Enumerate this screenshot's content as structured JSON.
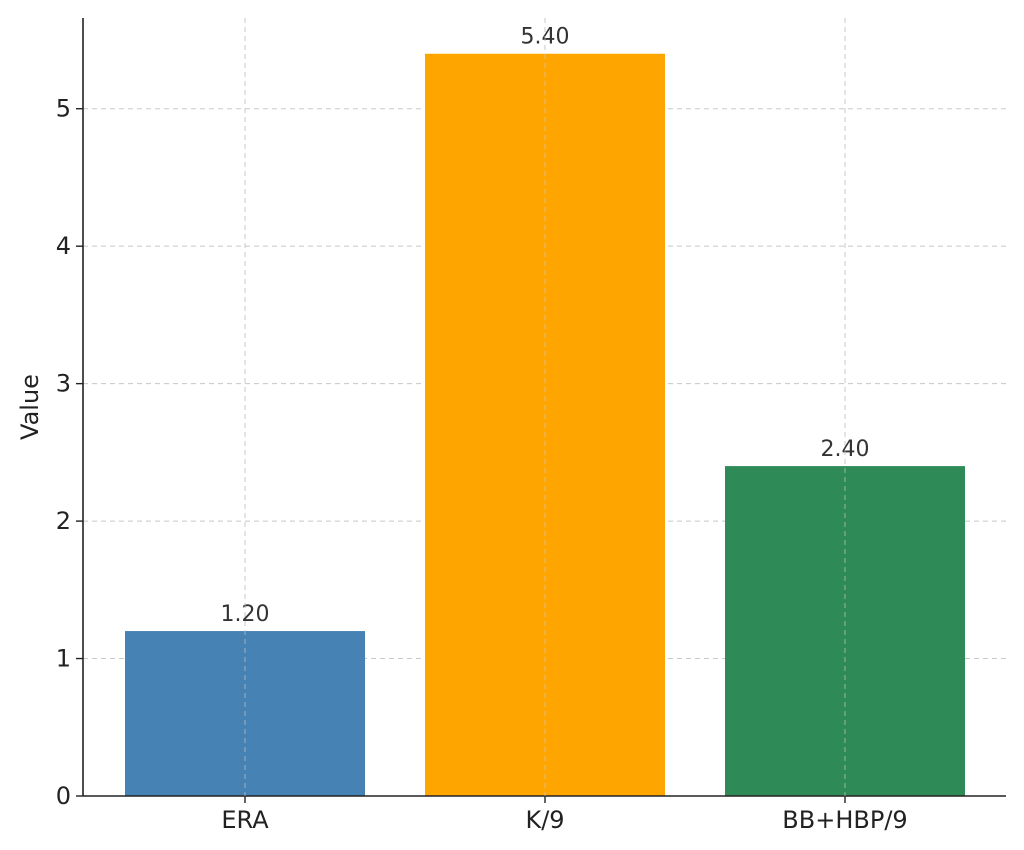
{
  "chart_data": {
    "type": "bar",
    "title": "",
    "xlabel": "",
    "ylabel": "Value",
    "categories": [
      "ERA",
      "K/9",
      "BB+HBP/9"
    ],
    "values": [
      1.2,
      5.4,
      2.4
    ],
    "data_labels": [
      "1.20",
      "5.40",
      "2.40"
    ],
    "colors": [
      "#4682b4",
      "#ffa500",
      "#2e8b57"
    ],
    "ylim": [
      0,
      5.66
    ],
    "yticks": [
      0,
      1,
      2,
      3,
      4,
      5
    ],
    "grid": true,
    "legend": "none"
  }
}
